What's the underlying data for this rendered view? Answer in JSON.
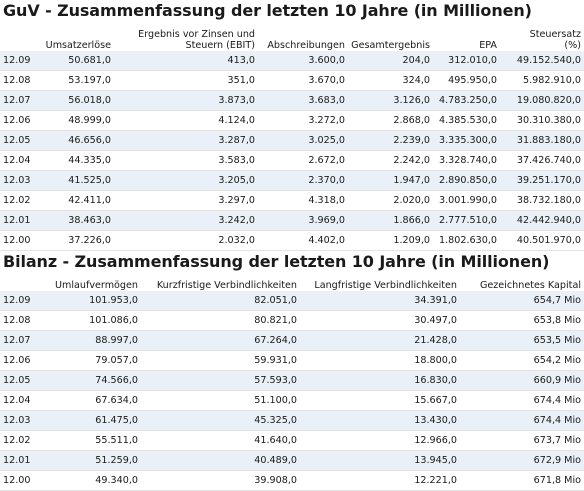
{
  "guv": {
    "title": "GuV - Zusammenfassung der letzten 10 Jahre (in Millionen)",
    "headers": [
      "",
      "Umsatzerlöse",
      "Ergebnis vor Zinsen und\nSteuern (EBIT)",
      "Abschreibungen",
      "Gesamtergebnis",
      "EPA",
      "Steuersatz\n(%)"
    ],
    "rows": [
      [
        "12.09",
        "50.681,0",
        "413,0",
        "3.600,0",
        "204,0",
        "312.010,0",
        "49.152.540,0"
      ],
      [
        "12.08",
        "53.197,0",
        "351,0",
        "3.670,0",
        "324,0",
        "495.950,0",
        "5.982.910,0"
      ],
      [
        "12.07",
        "56.018,0",
        "3.873,0",
        "3.683,0",
        "3.126,0",
        "4.783.250,0",
        "19.080.820,0"
      ],
      [
        "12.06",
        "48.999,0",
        "4.124,0",
        "3.272,0",
        "2.868,0",
        "4.385.530,0",
        "30.310.380,0"
      ],
      [
        "12.05",
        "46.656,0",
        "3.287,0",
        "3.025,0",
        "2.239,0",
        "3.335.300,0",
        "31.883.180,0"
      ],
      [
        "12.04",
        "44.335,0",
        "3.583,0",
        "2.672,0",
        "2.242,0",
        "3.328.740,0",
        "37.426.740,0"
      ],
      [
        "12.03",
        "41.525,0",
        "3.205,0",
        "2.370,0",
        "1.947,0",
        "2.890.850,0",
        "39.251.170,0"
      ],
      [
        "12.02",
        "42.411,0",
        "3.297,0",
        "4.318,0",
        "2.020,0",
        "3.001.990,0",
        "38.732.180,0"
      ],
      [
        "12.01",
        "38.463,0",
        "3.242,0",
        "3.969,0",
        "1.866,0",
        "2.777.510,0",
        "42.442.940,0"
      ],
      [
        "12.00",
        "37.226,0",
        "2.032,0",
        "4.402,0",
        "1.209,0",
        "1.802.630,0",
        "40.501.970,0"
      ]
    ]
  },
  "bilanz": {
    "title": "Bilanz - Zusammenfassung der letzten 10 Jahre (in Millionen)",
    "headers": [
      "",
      "Umlaufvermögen",
      "Kurzfristige Verbindlichkeiten",
      "Langfristige Verbindlichkeiten",
      "Gezeichnetes Kapital"
    ],
    "rows": [
      [
        "12.09",
        "101.953,0",
        "82.051,0",
        "34.391,0",
        "654,7 Mio"
      ],
      [
        "12.08",
        "101.086,0",
        "80.821,0",
        "30.497,0",
        "653,8 Mio"
      ],
      [
        "12.07",
        "88.997,0",
        "67.264,0",
        "21.428,0",
        "653,5 Mio"
      ],
      [
        "12.06",
        "79.057,0",
        "59.931,0",
        "18.800,0",
        "654,2 Mio"
      ],
      [
        "12.05",
        "74.566,0",
        "57.593,0",
        "16.830,0",
        "660,9 Mio"
      ],
      [
        "12.04",
        "67.634,0",
        "51.100,0",
        "15.667,0",
        "674,4 Mio"
      ],
      [
        "12.03",
        "61.475,0",
        "45.325,0",
        "13.430,0",
        "674,4 Mio"
      ],
      [
        "12.02",
        "55.511,0",
        "41.640,0",
        "12.966,0",
        "673,7 Mio"
      ],
      [
        "12.01",
        "51.259,0",
        "40.489,0",
        "13.945,0",
        "672,9 Mio"
      ],
      [
        "12.00",
        "49.340,0",
        "39.908,0",
        "12.221,0",
        "671,8 Mio"
      ]
    ]
  }
}
